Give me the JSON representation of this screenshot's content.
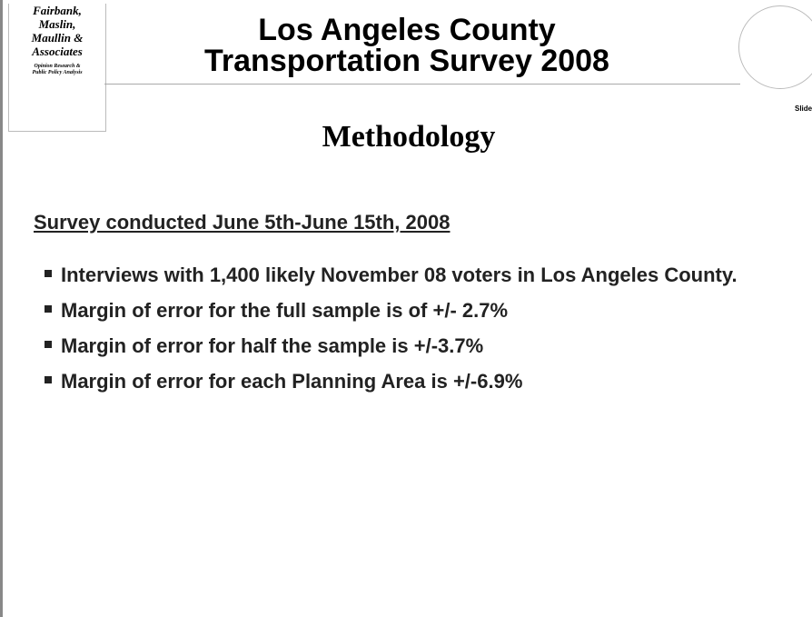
{
  "logo": {
    "name": [
      "Fairbank,",
      "Maslin,",
      "Maullin &",
      "Associates"
    ],
    "tagline": [
      "Opinion Research &",
      "Public Policy Analysis"
    ]
  },
  "header": {
    "title": [
      "Los Angeles County",
      "Transportation Survey 2008"
    ],
    "slide": "Slide"
  },
  "section": "Methodology",
  "subheading": "Survey conducted June 5th-June 15th, 2008",
  "bullets": [
    "Interviews with 1,400 likely November 08 voters in Los Angeles County.",
    "Margin of error for the full sample is of +/- 2.7%",
    "Margin of error for half the sample is +/-3.7%",
    "Margin of error for each Planning Area is +/-6.9%"
  ]
}
